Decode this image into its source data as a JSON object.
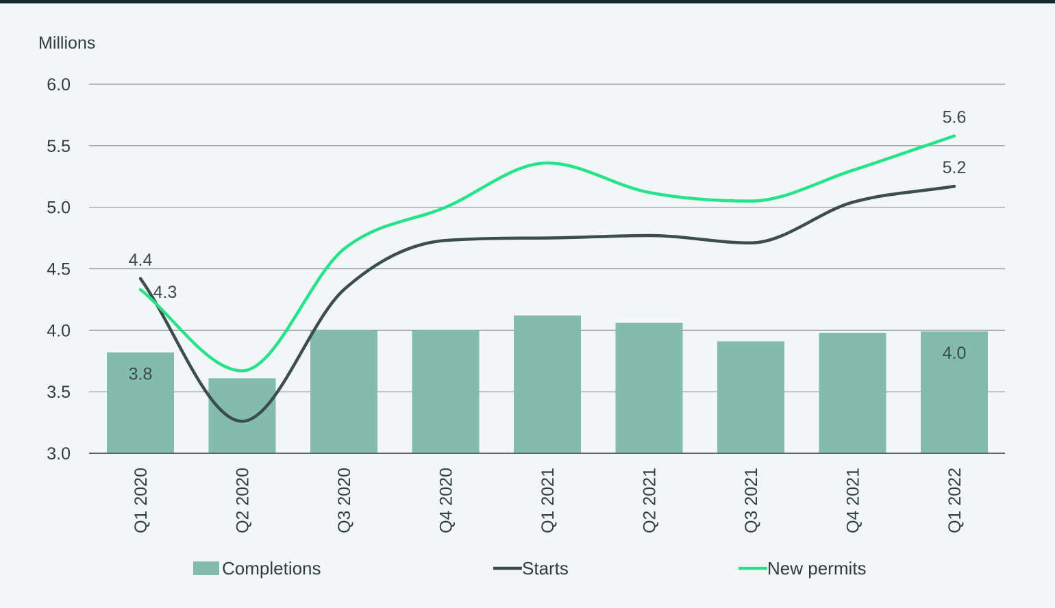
{
  "chart_data": {
    "type": "bar",
    "unit_label": "Millions",
    "categories": [
      "Q1 2020",
      "Q2 2020",
      "Q3 2020",
      "Q4 2020",
      "Q1 2021",
      "Q2 2021",
      "Q3 2021",
      "Q4 2021",
      "Q1 2022"
    ],
    "ylim": [
      3.0,
      6.0
    ],
    "yticks": [
      "3.0",
      "3.5",
      "4.0",
      "4.5",
      "5.0",
      "5.5",
      "6.0"
    ],
    "grid": true,
    "legend_position": "bottom",
    "series": [
      {
        "name": "Completions",
        "kind": "bar",
        "color": "#83bbad",
        "values": [
          3.82,
          3.61,
          4.0,
          4.0,
          4.12,
          4.06,
          3.91,
          3.98,
          3.99
        ],
        "labels": [
          "3.8",
          "",
          "",
          "",
          "",
          "",
          "",
          "",
          "4.0"
        ]
      },
      {
        "name": "Starts",
        "kind": "line",
        "color": "#3c4d50",
        "values": [
          4.42,
          3.26,
          4.33,
          4.73,
          4.75,
          4.77,
          4.71,
          5.04,
          5.17
        ],
        "labels": [
          "4.4",
          "",
          "",
          "",
          "",
          "",
          "",
          "",
          "5.2"
        ]
      },
      {
        "name": "New permits",
        "kind": "line",
        "color": "#26e38b",
        "values": [
          4.33,
          3.67,
          4.66,
          5.0,
          5.36,
          5.12,
          5.05,
          5.3,
          5.58
        ],
        "labels": [
          "4.3",
          "",
          "",
          "",
          "",
          "",
          "",
          "",
          "5.6"
        ]
      }
    ]
  }
}
